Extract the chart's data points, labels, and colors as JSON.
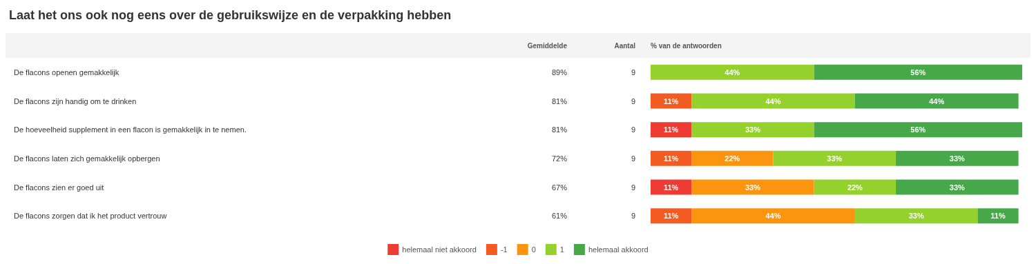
{
  "chart_data": {
    "type": "bar",
    "orientation": "horizontal",
    "stacked": true,
    "title": "Laat het ons ook nog eens over de gebruikswijze en de verpakking hebben",
    "categories": [
      "De flacons openen gemakkelijk",
      "De flacons zijn handig om te drinken",
      "De hoeveelheid supplement in een flacon is gemakkelijk in te nemen.",
      "De flacons laten zich gemakkelijk opbergen",
      "De flacons zien er goed uit",
      "De flacons zorgen dat ik het product vertrouw"
    ],
    "series": [
      {
        "name": "helemaal niet akkoord",
        "color": "#ee3b34",
        "values": [
          0,
          0,
          11,
          0,
          11,
          0
        ],
        "value_labels": [
          null,
          null,
          "11%",
          null,
          "11%",
          null
        ]
      },
      {
        "name": "-1",
        "color": "#f25c22",
        "values": [
          0,
          11,
          0,
          11,
          0,
          11
        ],
        "value_labels": [
          null,
          "11%",
          null,
          "11%",
          null,
          "11%"
        ]
      },
      {
        "name": "0",
        "color": "#fb9510",
        "values": [
          0,
          0,
          0,
          22,
          33,
          44
        ],
        "value_labels": [
          null,
          null,
          null,
          "22%",
          "33%",
          "44%"
        ]
      },
      {
        "name": "1",
        "color": "#94d12c",
        "values": [
          44,
          44,
          33,
          33,
          22,
          33
        ],
        "value_labels": [
          "44%",
          "44%",
          "33%",
          "33%",
          "22%",
          "33%"
        ]
      },
      {
        "name": "helemaal akkoord",
        "color": "#47a84a",
        "values": [
          56,
          44,
          56,
          33,
          33,
          11
        ],
        "value_labels": [
          "56%",
          "44%",
          "56%",
          "33%",
          "33%",
          "11%"
        ]
      }
    ],
    "xlim": [
      0,
      100
    ],
    "tick_labels": "y",
    "legend": "bottom",
    "annotations": [
      "Gemiddelde",
      "Aantal",
      "% van de antwoorden",
      "89%",
      "9",
      "81%",
      "9",
      "81%",
      "9",
      "72%",
      "9",
      "67%",
      "9",
      "61%",
      "9"
    ]
  }
}
